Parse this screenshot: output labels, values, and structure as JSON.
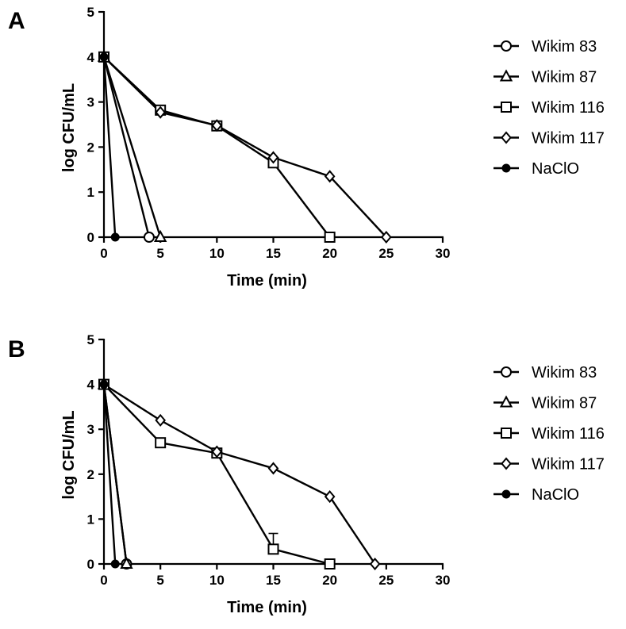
{
  "chart_data": [
    {
      "type": "line",
      "panel_label": "A",
      "xlabel": "Time (min)",
      "ylabel": "log CFU/mL",
      "xlim": [
        0,
        30
      ],
      "ylim": [
        0,
        5
      ],
      "xticks": [
        0,
        5,
        10,
        15,
        20,
        25,
        30
      ],
      "yticks": [
        0,
        1,
        2,
        3,
        4,
        5
      ],
      "legend_position": "right",
      "series": [
        {
          "name": "Wikim 83",
          "marker": "circle-open",
          "x": [
            0,
            4
          ],
          "y": [
            4,
            0
          ]
        },
        {
          "name": "Wikim 87",
          "marker": "triangle-open",
          "x": [
            0,
            5
          ],
          "y": [
            4,
            0
          ]
        },
        {
          "name": "Wikim 116",
          "marker": "square-open",
          "x": [
            0,
            5,
            10,
            15,
            20
          ],
          "y": [
            4,
            2.82,
            2.47,
            1.65,
            0
          ]
        },
        {
          "name": "Wikim 117",
          "marker": "diamond-open",
          "x": [
            0,
            5,
            10,
            15,
            20,
            25
          ],
          "y": [
            4,
            2.77,
            2.48,
            1.77,
            1.35,
            0
          ]
        },
        {
          "name": "NaClO",
          "marker": "circle-filled",
          "x": [
            0,
            1
          ],
          "y": [
            4,
            0
          ]
        }
      ]
    },
    {
      "type": "line",
      "panel_label": "B",
      "xlabel": "Time (min)",
      "ylabel": "log CFU/mL",
      "xlim": [
        0,
        30
      ],
      "ylim": [
        0,
        5
      ],
      "xticks": [
        0,
        5,
        10,
        15,
        20,
        25,
        30
      ],
      "yticks": [
        0,
        1,
        2,
        3,
        4,
        5
      ],
      "legend_position": "right",
      "series": [
        {
          "name": "Wikim 83",
          "marker": "circle-open",
          "x": [
            0,
            2
          ],
          "y": [
            4,
            0
          ]
        },
        {
          "name": "Wikim 87",
          "marker": "triangle-open",
          "x": [
            0,
            2
          ],
          "y": [
            4,
            0
          ]
        },
        {
          "name": "Wikim 116",
          "marker": "square-open",
          "x": [
            0,
            5,
            10,
            15,
            20
          ],
          "y": [
            4,
            2.7,
            2.47,
            0.33,
            0
          ],
          "error_upper": [
            0,
            0,
            0,
            0.35,
            0
          ]
        },
        {
          "name": "Wikim 117",
          "marker": "diamond-open",
          "x": [
            0,
            5,
            10,
            15,
            20,
            24
          ],
          "y": [
            4,
            3.2,
            2.5,
            2.13,
            1.5,
            0
          ]
        },
        {
          "name": "NaClO",
          "marker": "circle-filled",
          "x": [
            0,
            1
          ],
          "y": [
            4,
            0
          ]
        }
      ]
    }
  ]
}
